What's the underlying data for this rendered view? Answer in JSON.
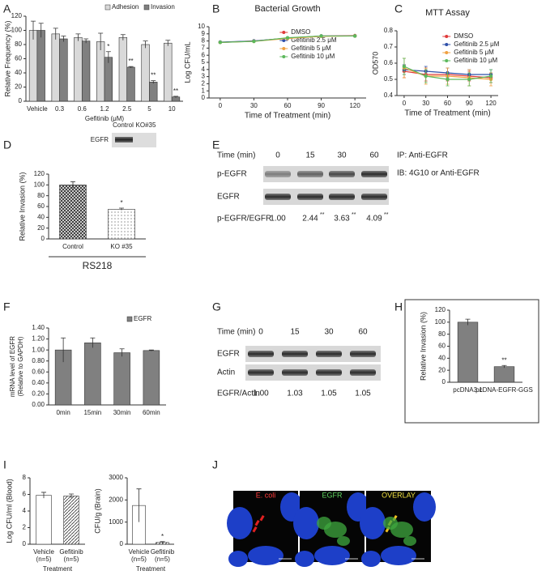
{
  "chart_data": [
    {
      "panel": "A",
      "type": "bar",
      "ylabel": "Relative Frequency (%)",
      "xlabel": "Gefitinib (μM)",
      "categories": [
        "Vehicle",
        "0.3",
        "0.6",
        "1.2",
        "2.5",
        "5",
        "10"
      ],
      "ylim": [
        0,
        120
      ],
      "yticks": [
        0,
        20,
        40,
        60,
        80,
        100,
        120
      ],
      "legend": "top-right",
      "series": [
        {
          "name": "Adhesion",
          "color": "#d9d9d9",
          "values": [
            100,
            95,
            90,
            84,
            90,
            80,
            82
          ],
          "errors": [
            13,
            8,
            5,
            12,
            4,
            5,
            4
          ]
        },
        {
          "name": "Invasion",
          "color": "#808080",
          "values": [
            100,
            88,
            85,
            62,
            48,
            27,
            6
          ],
          "errors": [
            10,
            4,
            3,
            8,
            1,
            2,
            1
          ],
          "significance": [
            null,
            null,
            null,
            "*",
            "**",
            "**",
            "**"
          ]
        }
      ]
    },
    {
      "panel": "B",
      "type": "line",
      "title": "Bacterial Growth",
      "ylabel": "Log CFU/mL",
      "xlabel": "Time of Treatment (min)",
      "x": [
        0,
        30,
        60,
        90,
        120
      ],
      "xlim": [
        -10,
        130
      ],
      "xticks": [
        0,
        30,
        60,
        90,
        120
      ],
      "ylim": [
        0,
        10
      ],
      "yticks": [
        0,
        1,
        2,
        3,
        4,
        5,
        6,
        7,
        8,
        9,
        10
      ],
      "legend": "top-right",
      "series": [
        {
          "name": "DMSO",
          "color": "#e03a3a",
          "values": [
            7.8,
            8.0,
            8.4,
            8.7,
            8.75
          ]
        },
        {
          "name": "Gefitinib 2.5 μM",
          "color": "#2e4fa8",
          "values": [
            7.85,
            8.0,
            8.4,
            8.7,
            8.7
          ]
        },
        {
          "name": "Gefitinib 5 μM",
          "color": "#f0a040",
          "values": [
            7.8,
            7.95,
            8.35,
            8.65,
            8.7
          ]
        },
        {
          "name": "Gefitinib 10 μM",
          "color": "#5cb85c",
          "values": [
            7.8,
            7.95,
            8.45,
            8.7,
            8.7
          ]
        }
      ]
    },
    {
      "panel": "C",
      "type": "line",
      "title": "MTT Assay",
      "ylabel": "OD570",
      "xlabel": "Time of Treatment (min)",
      "x": [
        0,
        30,
        60,
        90,
        120
      ],
      "xlim": [
        -10,
        130
      ],
      "xticks": [
        0,
        30,
        60,
        90,
        120
      ],
      "ylim": [
        0.4,
        0.8
      ],
      "yticks": [
        0.4,
        0.5,
        0.6,
        0.7,
        0.8
      ],
      "legend": "top-right",
      "series": [
        {
          "name": "DMSO",
          "color": "#e03a3a",
          "values": [
            0.55,
            0.53,
            0.53,
            0.52,
            0.51
          ],
          "errors": [
            0.04,
            0.04,
            0.04,
            0.03,
            0.03
          ]
        },
        {
          "name": "Gefitinib 2.5 μM",
          "color": "#2e4fa8",
          "values": [
            0.56,
            0.55,
            0.54,
            0.53,
            0.53
          ],
          "errors": [
            0.03,
            0.03,
            0.03,
            0.03,
            0.03
          ]
        },
        {
          "name": "Gefitinib 5 μM",
          "color": "#f0a040",
          "values": [
            0.57,
            0.52,
            0.52,
            0.51,
            0.5
          ],
          "errors": [
            0.06,
            0.05,
            0.05,
            0.05,
            0.04
          ]
        },
        {
          "name": "Gefitinib 10 μM",
          "color": "#5cb85c",
          "values": [
            0.58,
            0.52,
            0.5,
            0.5,
            0.52
          ],
          "errors": [
            0.05,
            0.04,
            0.04,
            0.04,
            0.04
          ]
        }
      ]
    },
    {
      "panel": "D",
      "type": "bar",
      "ylabel": "Relative Invasion (%)",
      "categories": [
        "Control",
        "KO #35"
      ],
      "group_label": "RS218",
      "ylim": [
        0,
        120
      ],
      "yticks": [
        0,
        20,
        40,
        60,
        80,
        100,
        120
      ],
      "patterns": [
        "crosshatch",
        "dots"
      ],
      "series": [
        {
          "color": "#444444",
          "values": [
            100,
            55
          ],
          "errors": [
            6,
            2
          ],
          "significance": [
            null,
            "*"
          ]
        }
      ]
    },
    {
      "panel": "F",
      "type": "bar",
      "ylabel": [
        "mRNA level of EGFR",
        "(Relative to GAPDH)"
      ],
      "categories": [
        "0min",
        "15min",
        "30min",
        "60min"
      ],
      "ylim": [
        0,
        1.4
      ],
      "yticks": [
        {
          "value": 0,
          "label": "0.00"
        },
        {
          "value": 0.2,
          "label": "0.20"
        },
        {
          "value": 0.4,
          "label": "0.40"
        },
        {
          "value": 0.6,
          "label": "0.60"
        },
        {
          "value": 0.8,
          "label": "0.80"
        },
        {
          "value": 1,
          "label": "1.00"
        },
        {
          "value": 1.2,
          "label": "1.20"
        },
        {
          "value": 1.4,
          "label": "1.40"
        }
      ],
      "legend": "top-right",
      "series": [
        {
          "name": "EGFR",
          "color": "#808080",
          "values": [
            1.0,
            1.13,
            0.95,
            0.99
          ],
          "errors": [
            0.22,
            0.09,
            0.07,
            0.01
          ]
        }
      ]
    },
    {
      "panel": "H",
      "type": "bar",
      "ylabel": "Relative Invasion (%)",
      "categories": [
        "pcDNA3.1",
        "pcDNA-EGFR-GGS"
      ],
      "frame": true,
      "ylim": [
        0,
        120
      ],
      "yticks": [
        0,
        20,
        40,
        60,
        80,
        100,
        120
      ],
      "series": [
        {
          "color": "#808080",
          "values": [
            100,
            26
          ],
          "errors": [
            5,
            2
          ],
          "significance": [
            null,
            "**"
          ]
        }
      ]
    },
    {
      "panel": "I",
      "type": "bar",
      "ylabel": "Log CFU/ml (Blood)",
      "xlabel": "Treatment",
      "categories": [
        "Vehicle",
        "Gefitinib"
      ],
      "category_notes": [
        "(n=5)",
        "(n=5)"
      ],
      "ylim": [
        0,
        8
      ],
      "yticks": [
        0,
        2,
        4,
        6,
        8
      ],
      "patterns": [
        null,
        "hatch"
      ],
      "series": [
        {
          "color": "#ffffff",
          "values": [
            5.9,
            5.8
          ],
          "errors": [
            0.35,
            0.25
          ]
        }
      ]
    },
    {
      "type": "bar",
      "ylabel": "CFU/g (Brain)",
      "xlabel": "Treatment",
      "categories": [
        "Vehicle",
        "Gefitinib"
      ],
      "category_notes": [
        "(n=5)",
        "(n=5)"
      ],
      "ylim": [
        0,
        3000
      ],
      "yticks": [
        0,
        1000,
        2000,
        3000
      ],
      "patterns": [
        null,
        "hatch"
      ],
      "series": [
        {
          "color": "#ffffff",
          "values": [
            1750,
            80
          ],
          "errors": [
            750,
            40
          ],
          "significance": [
            null,
            "*"
          ]
        }
      ]
    }
  ],
  "inset": {
    "row": "EGFR",
    "lanes": [
      "Control",
      "KO#35"
    ]
  },
  "blots": [
    {
      "panel": "E",
      "header": "Time (min)",
      "lanes": [
        "0",
        "15",
        "30",
        "60"
      ],
      "rows": [
        "p-EGFR",
        "EGFR"
      ],
      "ratio_label": "p-EGFR/EGFR",
      "ratios": [
        "1.00",
        "2.44",
        "3.63",
        "4.09"
      ],
      "significance": [
        null,
        "**",
        "**",
        "**"
      ],
      "notes": [
        "IP: Anti-EGFR",
        "IB: 4G10 or Anti-EGFR"
      ]
    },
    {
      "panel": "G",
      "header": "Time (min)",
      "lanes": [
        "0",
        "15",
        "30",
        "60"
      ],
      "rows": [
        "EGFR",
        "Actin"
      ],
      "ratio_label": "EGFR/Actin",
      "ratios": [
        "1.00",
        "1.03",
        "1.05",
        "1.05"
      ]
    }
  ],
  "micrographs": {
    "panel": "J",
    "channels": [
      {
        "label": "E. coli",
        "color": "#ff3b3b"
      },
      {
        "label": "EGFR",
        "color": "#5fd35f"
      },
      {
        "label": "OVERLAY",
        "color": "#f0e040"
      }
    ]
  }
}
